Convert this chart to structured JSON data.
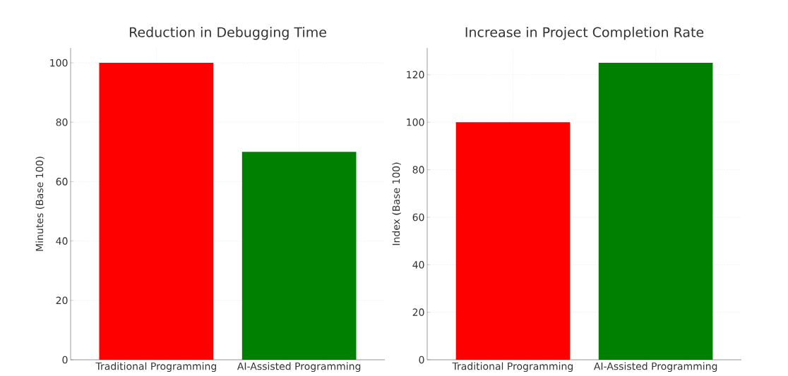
{
  "chart_data": [
    {
      "type": "bar",
      "title": "Reduction in Debugging Time",
      "ylabel": "Minutes (Base 100)",
      "categories": [
        "Traditional Programming",
        "AI-Assisted Programming"
      ],
      "values": [
        100,
        70
      ],
      "colors": [
        "#ff0000",
        "#008000"
      ],
      "ylim": [
        0,
        105
      ],
      "yticks": [
        0,
        20,
        40,
        60,
        80,
        100
      ],
      "grid": true
    },
    {
      "type": "bar",
      "title": "Increase in Project Completion Rate",
      "ylabel": "Index (Base 100)",
      "categories": [
        "Traditional Programming",
        "AI-Assisted Programming"
      ],
      "values": [
        100,
        125
      ],
      "colors": [
        "#ff0000",
        "#008000"
      ],
      "ylim": [
        0,
        131.25
      ],
      "yticks": [
        0,
        20,
        40,
        60,
        80,
        100,
        120
      ],
      "grid": true
    }
  ]
}
